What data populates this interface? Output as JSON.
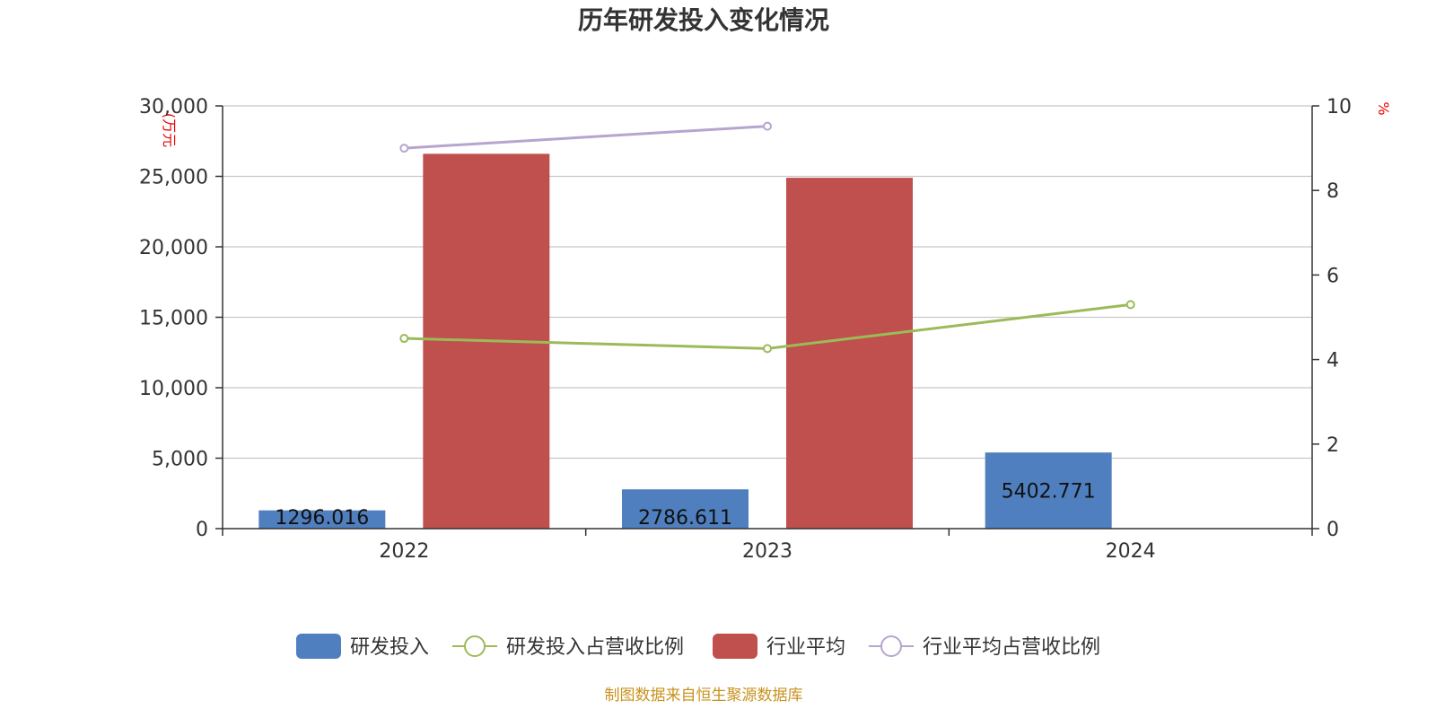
{
  "chart_data": {
    "type": "bar",
    "title": "历年研发投入变化情况",
    "categories": [
      "2022",
      "2023",
      "2024"
    ],
    "y_left": {
      "unit": "(万元",
      "ticks": [
        "0",
        "5,000",
        "10,000",
        "15,000",
        "20,000",
        "25,000",
        "30,000"
      ],
      "range": [
        0,
        30000
      ]
    },
    "y_right": {
      "unit": "%",
      "ticks": [
        "0",
        "2",
        "4",
        "6",
        "8",
        "10"
      ],
      "range": [
        0,
        10
      ]
    },
    "series": [
      {
        "name": "研发投入",
        "type": "bar",
        "axis": "left",
        "color": "#4f7fbe",
        "values": [
          1296.016,
          2786.611,
          5402.771
        ],
        "labels": [
          "1296.016",
          "2786.611",
          "5402.771"
        ]
      },
      {
        "name": "研发投入占营收比例",
        "type": "line",
        "axis": "right",
        "color": "#9bbb59",
        "values": [
          4.5,
          4.26,
          5.3
        ]
      },
      {
        "name": "行业平均",
        "type": "bar",
        "axis": "left",
        "color": "#c0504d",
        "values": [
          26600,
          24900,
          null
        ]
      },
      {
        "name": "行业平均占营收比例",
        "type": "line",
        "axis": "right",
        "color": "#b5a5cf",
        "values": [
          9.0,
          9.52,
          null
        ]
      }
    ],
    "legend_position": "bottom",
    "grid": true,
    "source": "制图数据来自恒生聚源数据库"
  }
}
